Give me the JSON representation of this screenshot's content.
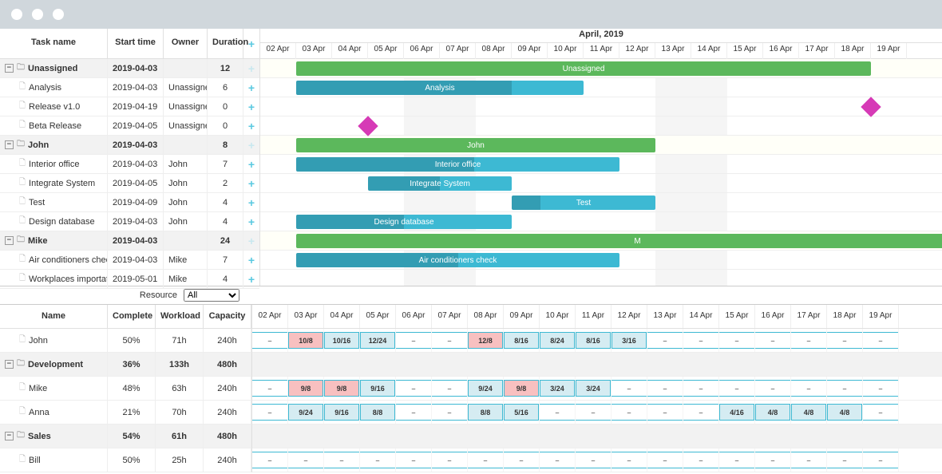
{
  "browser": {
    "traffic_lights": 3
  },
  "gantt": {
    "columns": {
      "task_name": "Task name",
      "start_time": "Start time",
      "owner": "Owner",
      "duration": "Duration"
    },
    "col_widths": {
      "name": 135,
      "start": 70,
      "owner": 55,
      "duration": 45,
      "add": 20
    },
    "timeline": {
      "title": "April, 2019",
      "day_width": 45,
      "days": [
        "02 Apr",
        "03 Apr",
        "04 Apr",
        "05 Apr",
        "06 Apr",
        "07 Apr",
        "08 Apr",
        "09 Apr",
        "10 Apr",
        "11 Apr",
        "12 Apr",
        "13 Apr",
        "14 Apr",
        "15 Apr",
        "16 Apr",
        "17 Apr",
        "18 Apr",
        "19 Apr"
      ],
      "weekends": [
        4,
        5,
        11,
        12
      ]
    },
    "rows": [
      {
        "type": "group",
        "name": "Unassigned",
        "start": "2019-04-03",
        "owner": "",
        "duration": "12",
        "bar": {
          "from": 1,
          "len": 16,
          "color": "green",
          "label": "Unassigned"
        }
      },
      {
        "type": "task",
        "name": "Analysis",
        "start": "2019-04-03",
        "owner": "Unassigned",
        "duration": "6",
        "bar": {
          "from": 1,
          "len": 8,
          "color": "teal",
          "label": "Analysis",
          "progress": 0.75
        }
      },
      {
        "type": "task",
        "name": "Release v1.0",
        "start": "2019-04-19",
        "owner": "Unassigned",
        "duration": "0",
        "milestone": {
          "at": 17
        }
      },
      {
        "type": "task",
        "name": "Beta Release",
        "start": "2019-04-05",
        "owner": "Unassigned",
        "duration": "0",
        "milestone": {
          "at": 3
        }
      },
      {
        "type": "group",
        "name": "John",
        "start": "2019-04-03",
        "owner": "",
        "duration": "8",
        "bar": {
          "from": 1,
          "len": 10,
          "color": "green",
          "label": "John"
        }
      },
      {
        "type": "task",
        "name": "Interior office",
        "start": "2019-04-03",
        "owner": "John",
        "duration": "7",
        "bar": {
          "from": 1,
          "len": 9,
          "color": "teal",
          "label": "Interior office",
          "progress": 0.55
        }
      },
      {
        "type": "task",
        "name": "Integrate System",
        "start": "2019-04-05",
        "owner": "John",
        "duration": "2",
        "bar": {
          "from": 3,
          "len": 4,
          "color": "teal",
          "label": "Integrate System",
          "progress": 0.5
        }
      },
      {
        "type": "task",
        "name": "Test",
        "start": "2019-04-09",
        "owner": "John",
        "duration": "4",
        "bar": {
          "from": 7,
          "len": 4,
          "color": "teal",
          "label": "Test",
          "progress": 0.2
        }
      },
      {
        "type": "task",
        "name": "Design database",
        "start": "2019-04-03",
        "owner": "John",
        "duration": "4",
        "bar": {
          "from": 1,
          "len": 6,
          "color": "teal",
          "label": "Design database",
          "progress": 0.5
        }
      },
      {
        "type": "group",
        "name": "Mike",
        "start": "2019-04-03",
        "owner": "",
        "duration": "24",
        "bar": {
          "from": 1,
          "len": 19,
          "color": "green",
          "label": "M"
        }
      },
      {
        "type": "task",
        "name": "Air conditioners check",
        "start": "2019-04-03",
        "owner": "Mike",
        "duration": "7",
        "bar": {
          "from": 1,
          "len": 9,
          "color": "teal",
          "label": "Air conditioners check",
          "progress": 0.5
        }
      },
      {
        "type": "task",
        "name": "Workplaces importation",
        "start": "2019-05-01",
        "owner": "Mike",
        "duration": "4"
      }
    ],
    "colors": {
      "green": "#5cb85c",
      "teal": "#3db9d3",
      "milestone": "#d63ab6",
      "dep": "#ffa500"
    }
  },
  "filter": {
    "label": "Resource",
    "options": [
      "All"
    ],
    "selected": "All"
  },
  "resource": {
    "columns": {
      "name": "Name",
      "complete": "Complete",
      "workload": "Workload",
      "capacity": "Capacity"
    },
    "col_widths": {
      "name": 135,
      "complete": 60,
      "workload": 60,
      "capacity": 60
    },
    "days": [
      "02 Apr",
      "03 Apr",
      "04 Apr",
      "05 Apr",
      "06 Apr",
      "07 Apr",
      "08 Apr",
      "09 Apr",
      "10 Apr",
      "11 Apr",
      "12 Apr",
      "13 Apr",
      "14 Apr",
      "15 Apr",
      "16 Apr",
      "17 Apr",
      "18 Apr",
      "19 Apr"
    ],
    "rows": [
      {
        "type": "person",
        "name": "John",
        "complete": "50%",
        "workload": "71h",
        "capacity": "240h",
        "cells": [
          "–",
          {
            "v": "10/8",
            "s": "over"
          },
          {
            "v": "10/16",
            "s": "under"
          },
          {
            "v": "12/24",
            "s": "under"
          },
          "–",
          "–",
          {
            "v": "12/8",
            "s": "over"
          },
          {
            "v": "8/16",
            "s": "under"
          },
          {
            "v": "8/24",
            "s": "under"
          },
          {
            "v": "8/16",
            "s": "under"
          },
          {
            "v": "3/16",
            "s": "under"
          },
          "–",
          "–",
          "–",
          "–",
          "–",
          "–",
          "–"
        ]
      },
      {
        "type": "group",
        "name": "Development",
        "complete": "36%",
        "workload": "133h",
        "capacity": "480h"
      },
      {
        "type": "person",
        "name": "Mike",
        "complete": "48%",
        "workload": "63h",
        "capacity": "240h",
        "cells": [
          "–",
          {
            "v": "9/8",
            "s": "over"
          },
          {
            "v": "9/8",
            "s": "over"
          },
          {
            "v": "9/16",
            "s": "under"
          },
          "–",
          "–",
          {
            "v": "9/24",
            "s": "under"
          },
          {
            "v": "9/8",
            "s": "over"
          },
          {
            "v": "3/24",
            "s": "under"
          },
          {
            "v": "3/24",
            "s": "under"
          },
          "–",
          "–",
          "–",
          "–",
          "–",
          "–",
          "–",
          "–"
        ]
      },
      {
        "type": "person",
        "name": "Anna",
        "complete": "21%",
        "workload": "70h",
        "capacity": "240h",
        "cells": [
          "–",
          {
            "v": "9/24",
            "s": "under"
          },
          {
            "v": "9/16",
            "s": "under"
          },
          {
            "v": "8/8",
            "s": "under"
          },
          "–",
          "–",
          {
            "v": "8/8",
            "s": "under"
          },
          {
            "v": "5/16",
            "s": "under"
          },
          "–",
          "–",
          "–",
          "–",
          "–",
          {
            "v": "4/16",
            "s": "under"
          },
          {
            "v": "4/8",
            "s": "under"
          },
          {
            "v": "4/8",
            "s": "under"
          },
          {
            "v": "4/8",
            "s": "under"
          },
          "–"
        ]
      },
      {
        "type": "group",
        "name": "Sales",
        "complete": "54%",
        "workload": "61h",
        "capacity": "480h"
      },
      {
        "type": "person",
        "name": "Bill",
        "complete": "50%",
        "workload": "25h",
        "capacity": "240h",
        "cells": [
          "–",
          "–",
          "–",
          "–",
          "–",
          "–",
          "–",
          "–",
          "–",
          "–",
          "–",
          "–",
          "–",
          "–",
          "–",
          "–",
          "–",
          "–"
        ]
      }
    ]
  }
}
